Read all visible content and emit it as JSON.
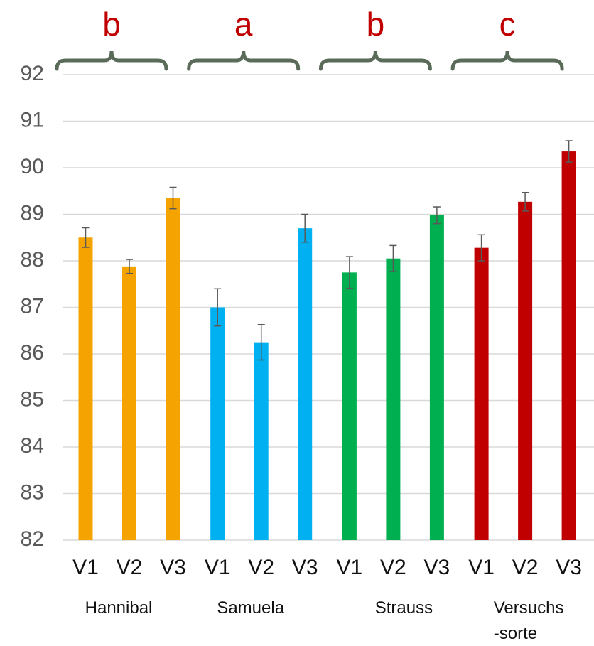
{
  "chart_data": {
    "type": "bar",
    "categories": [
      "V1",
      "V2",
      "V3"
    ],
    "series": [
      {
        "name": "Hannibal",
        "letter": "b",
        "color": "#f5a300",
        "values": [
          88.5,
          87.88,
          89.35
        ],
        "errors": [
          0.21,
          0.15,
          0.23
        ]
      },
      {
        "name": "Samuela",
        "letter": "a",
        "color": "#00b0f0",
        "values": [
          87.0,
          86.25,
          88.7
        ],
        "errors": [
          0.4,
          0.38,
          0.3
        ]
      },
      {
        "name": "Strauss",
        "letter": "b",
        "color": "#00b050",
        "values": [
          87.75,
          88.05,
          88.98
        ],
        "errors": [
          0.34,
          0.28,
          0.18
        ]
      },
      {
        "name": "Versuchs\n-sorte",
        "letter": "c",
        "color": "#c00000",
        "values": [
          88.28,
          89.27,
          90.35
        ],
        "errors": [
          0.28,
          0.2,
          0.23
        ]
      }
    ],
    "ylim": [
      82,
      92
    ],
    "yticks": [
      82,
      83,
      84,
      85,
      86,
      87,
      88,
      89,
      90,
      91,
      92
    ],
    "grid": true
  }
}
